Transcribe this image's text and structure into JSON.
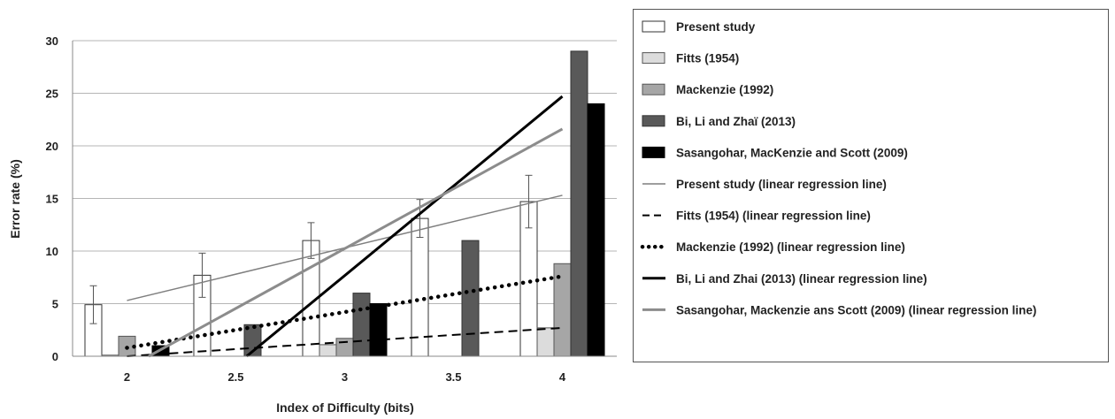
{
  "chart_data": {
    "type": "bar",
    "xlabel": "Index of Difficulty (bits)",
    "ylabel": "Error rate (%)",
    "ylim": [
      0,
      30
    ],
    "yticks": [
      "0",
      "5",
      "10",
      "15",
      "20",
      "25",
      "30"
    ],
    "categories": [
      "2",
      "2.5",
      "3",
      "3.5",
      "4"
    ],
    "grid": "horizontal",
    "legend_position": "right",
    "series": [
      {
        "name": "Present study",
        "kind": "bar",
        "color": "#ffffff",
        "stroke": "#333333",
        "values": [
          4.9,
          7.7,
          11.0,
          13.1,
          14.7
        ],
        "error": [
          1.8,
          2.1,
          1.7,
          1.8,
          2.5
        ]
      },
      {
        "name": "Fitts (1954)",
        "kind": "bar",
        "color": "#dcdcdc",
        "stroke": "#555555",
        "values": [
          0.1,
          null,
          1.1,
          null,
          2.7
        ]
      },
      {
        "name": "Mackenzie (1992)",
        "kind": "bar",
        "color": "#a6a6a6",
        "stroke": "#555555",
        "values": [
          1.9,
          null,
          1.7,
          null,
          8.8
        ]
      },
      {
        "name": "Bi, Li and Zhaï (2013)",
        "kind": "bar",
        "color": "#595959",
        "stroke": "#333333",
        "values": [
          null,
          3.0,
          6.0,
          11.0,
          29.0
        ]
      },
      {
        "name": "Sasangohar, MacKenzie and Scott (2009)",
        "kind": "bar",
        "color": "#000000",
        "stroke": "#000000",
        "values": [
          1.0,
          null,
          5.0,
          null,
          24.0
        ]
      }
    ],
    "regression_lines": [
      {
        "name": "Present study (linear regression line)",
        "color": "#7f7f7f",
        "width": 1.5,
        "dash": "",
        "x": [
          2,
          4
        ],
        "y": [
          5.3,
          15.3
        ]
      },
      {
        "name": "Fitts (1954) (linear regression line)",
        "color": "#000000",
        "width": 2,
        "dash": "10,6",
        "x": [
          2,
          4
        ],
        "y": [
          0.0,
          2.7
        ]
      },
      {
        "name": "Mackenzie (1992) (linear regression line)",
        "color": "#000000",
        "width": 4.5,
        "dash": "0.1,8",
        "x": [
          2,
          4
        ],
        "y": [
          0.8,
          7.6
        ]
      },
      {
        "name": "Bi, Li and Zhai (2013) (linear regression line)",
        "color": "#000000",
        "width": 3,
        "dash": "",
        "x": [
          2.55,
          4
        ],
        "y": [
          0.0,
          24.7
        ]
      },
      {
        "name": "Sasangohar, Mackenzie ans Scott (2009) (linear regression line)",
        "color": "#8c8c8c",
        "width": 3,
        "dash": "",
        "x": [
          2.1,
          4
        ],
        "y": [
          0.0,
          21.6
        ]
      }
    ]
  }
}
